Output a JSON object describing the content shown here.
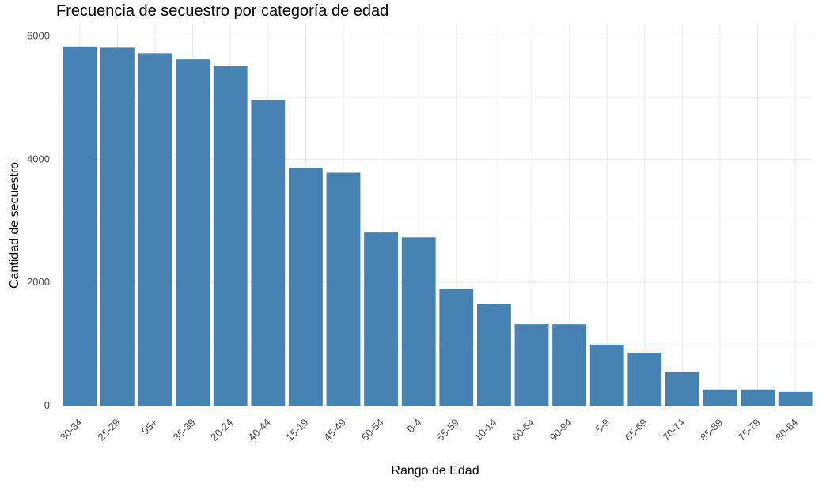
{
  "chart_data": {
    "type": "bar",
    "title": "Frecuencia de secuestro por categoría de edad",
    "xlabel": "Rango de Edad",
    "ylabel": "Cantidad de secuestro",
    "categories": [
      "30-34",
      "25-29",
      "95+",
      "35-39",
      "20-24",
      "40-44",
      "15-19",
      "45-49",
      "50-54",
      "0-4",
      "55-59",
      "10-14",
      "60-64",
      "90-94",
      "5-9",
      "65-69",
      "70-74",
      "85-89",
      "75-79",
      "80-84"
    ],
    "values": [
      5830,
      5810,
      5720,
      5620,
      5520,
      4960,
      3860,
      3780,
      2810,
      2730,
      1890,
      1650,
      1320,
      1320,
      990,
      860,
      540,
      260,
      260,
      220
    ],
    "yticks": [
      0,
      2000,
      4000,
      6000
    ],
    "ylim": [
      0,
      6200
    ],
    "grid": true,
    "legend": "none",
    "bar_color": "#4682B4",
    "grid_color": "#ebebeb"
  }
}
